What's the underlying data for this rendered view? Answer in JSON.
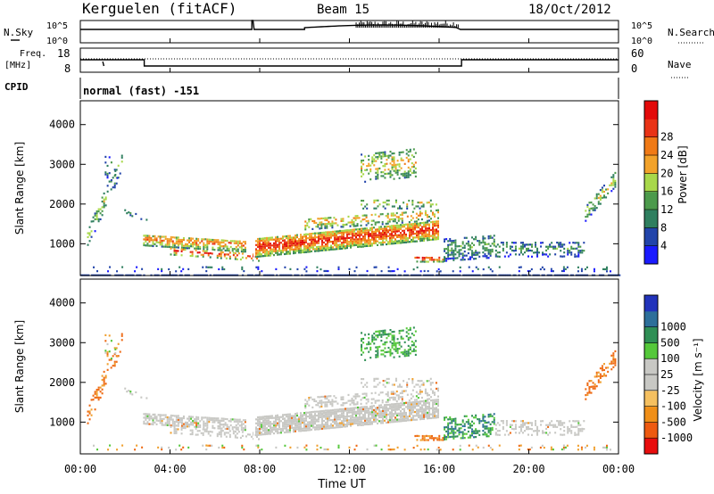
{
  "header": {
    "station": "Kerguelen (fitACF)",
    "beam": "Beam 15",
    "date": "18/Oct/2012"
  },
  "strips": {
    "nsky": {
      "label": "N.Sky",
      "ticks_left": [
        "10^5",
        "10^0"
      ],
      "right_label": "N.Search",
      "ticks_right": [
        "10^5",
        "10^0"
      ]
    },
    "freq": {
      "label_line1": "Freq.",
      "label_line2": "[MHz]",
      "ticks_left": [
        "18",
        "8"
      ],
      "right_label": "Nave",
      "ticks_right": [
        "60",
        "0"
      ]
    },
    "cpid": {
      "label": "CPID",
      "text": "normal (fast) -151"
    }
  },
  "colors": {
    "power_scale": [
      "#1a1aff",
      "#2244aa",
      "#2f7f5f",
      "#4c9a4c",
      "#a8d84a",
      "#f2a22a",
      "#f07a16",
      "#e93316",
      "#e30a0a"
    ],
    "velocity_scale": [
      "#e80d0d",
      "#ee5a10",
      "#f08f18",
      "#f5c060",
      "#c8c8c4",
      "#c8c8c4",
      "#55c83a",
      "#2f8f55",
      "#2d6f9a",
      "#2233bb"
    ]
  },
  "chart_data": [
    {
      "type": "heatmap",
      "name": "Power",
      "ylabel": "Slant Range [km]",
      "yticks": [
        1000,
        2000,
        3000,
        4000
      ],
      "ylim": [
        200,
        4600
      ],
      "xlim": [
        0,
        24
      ],
      "colorbar": {
        "label": "Power [dB]",
        "ticks": [
          "4",
          "8",
          "12",
          "16",
          "20",
          "24",
          "28"
        ],
        "range": [
          0,
          32
        ]
      }
    },
    {
      "type": "heatmap",
      "name": "Velocity",
      "ylabel": "Slant Range [km]",
      "yticks": [
        1000,
        2000,
        3000,
        4000
      ],
      "ylim": [
        200,
        4600
      ],
      "xlim": [
        0,
        24
      ],
      "colorbar": {
        "label": "Velocity [m s⁻¹]",
        "ticks": [
          "-1000",
          "-500",
          "-100",
          "-25",
          "25",
          "100",
          "500",
          "1000"
        ]
      }
    }
  ],
  "xaxis": {
    "label": "Time UT",
    "ticks": [
      "00:00",
      "04:00",
      "08:00",
      "12:00",
      "16:00",
      "20:00",
      "00:00"
    ],
    "hours": [
      0,
      4,
      8,
      12,
      16,
      20,
      24
    ]
  }
}
